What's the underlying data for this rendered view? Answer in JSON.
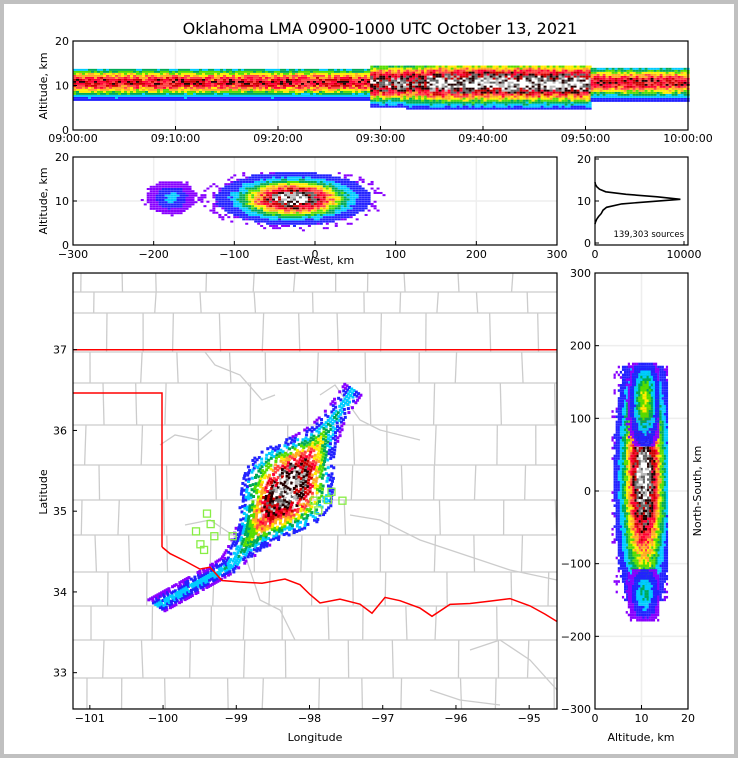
{
  "title": "Oklahoma LMA 0900-1000 UTC October 13, 2021",
  "colors": {
    "state_border": "#ff0000",
    "county_border": "#cccccc",
    "station_marker": "#88ee44",
    "grid": "#eeeeee",
    "density_scale": [
      "#8800ff",
      "#2222ff",
      "#00ccff",
      "#00aa55",
      "#55dd00",
      "#ffee00",
      "#ffaa22",
      "#ff4444",
      "#ff0033",
      "#cc0000",
      "#220000",
      "#666666",
      "#bbbbbb",
      "#ffffff"
    ]
  },
  "chart_data": [
    {
      "id": "time_height",
      "type": "heatmap",
      "title": "",
      "xlabel": "",
      "ylabel": "Altitude, km",
      "x_ticks": [
        "09:00:00",
        "09:10:00",
        "09:20:00",
        "09:30:00",
        "09:40:00",
        "09:50:00",
        "10:00:00"
      ],
      "xlim_minutes": [
        0,
        60
      ],
      "ylim": [
        0,
        20
      ],
      "y_ticks": [
        "0",
        "10",
        "20"
      ],
      "description_of_values": "source density vs time (minutes after 09:00) and altitude (km)",
      "bands": [
        {
          "t_start": 0,
          "t_end": 29,
          "alt_center": 10.5,
          "alt_spread": 1.8,
          "peak_level": 9
        },
        {
          "t_start": 29,
          "t_end": 32.5,
          "alt_center": 10.3,
          "alt_spread": 2.4,
          "peak_level": 12
        },
        {
          "t_start": 32.5,
          "t_end": 34.5,
          "alt_center": 10.3,
          "alt_spread": 2.6,
          "peak_level": 11
        },
        {
          "t_start": 34.5,
          "t_end": 50.5,
          "alt_center": 10.3,
          "alt_spread": 2.6,
          "peak_level": 13
        },
        {
          "t_start": 50.5,
          "t_end": 60,
          "alt_center": 10.5,
          "alt_spread": 1.9,
          "peak_level": 9
        }
      ]
    },
    {
      "id": "east_west_altitude",
      "type": "heatmap",
      "xlabel": "East-West, km",
      "ylabel": "Altitude, km",
      "xlim": [
        -300,
        300
      ],
      "ylim": [
        0,
        20
      ],
      "x_ticks": [
        "−300",
        "−200",
        "−100",
        "0",
        "100",
        "200",
        "300"
      ],
      "y_ticks": [
        "0",
        "10",
        "20"
      ],
      "clusters": [
        {
          "x_center": -28,
          "x_spread": 38,
          "alt_center": 10.3,
          "alt_spread": 2.4,
          "peak_level": 13
        },
        {
          "x_center": -180,
          "x_spread": 12,
          "alt_center": 10.5,
          "alt_spread": 1.5,
          "peak_level": 2
        }
      ]
    },
    {
      "id": "altitude_histogram",
      "type": "line",
      "xlabel": "",
      "ylabel": "",
      "xlim": [
        0,
        10000
      ],
      "ylim": [
        0,
        20
      ],
      "x_ticks": [
        "0",
        "10000"
      ],
      "y_ticks": [
        "0",
        "10",
        "20"
      ],
      "annotation": "139,303 sources",
      "x": [
        0,
        60,
        200,
        400,
        700,
        900,
        1300,
        3000,
        6500,
        9600,
        7000,
        3500,
        1200,
        500,
        200,
        60,
        0
      ],
      "y": [
        4.5,
        5.0,
        5.7,
        6.3,
        7.0,
        7.8,
        8.5,
        9.3,
        9.9,
        10.4,
        11.0,
        11.6,
        12.2,
        12.8,
        13.4,
        13.9,
        14.5
      ]
    },
    {
      "id": "plan_view_map",
      "type": "heatmap",
      "xlabel": "Longitude",
      "ylabel": "Latitude",
      "xlim": [
        -101.23,
        -94.62
      ],
      "ylim": [
        32.55,
        37.95
      ],
      "x_ticks": [
        "−101",
        "−100",
        "−99",
        "−98",
        "−97",
        "−96",
        "−95"
      ],
      "y_ticks": [
        "33",
        "34",
        "35",
        "36",
        "37"
      ],
      "storm_axis": [
        {
          "lon": -100.1,
          "lat": 33.85
        },
        {
          "lon": -99.1,
          "lat": 34.35
        },
        {
          "lon": -98.3,
          "lat": 35.3
        },
        {
          "lon": -97.4,
          "lat": 36.55
        }
      ],
      "stations": [
        {
          "lon": -99.4,
          "lat": 34.97
        },
        {
          "lon": -99.35,
          "lat": 34.84
        },
        {
          "lon": -99.55,
          "lat": 34.75
        },
        {
          "lon": -99.3,
          "lat": 34.69
        },
        {
          "lon": -99.49,
          "lat": 34.59
        },
        {
          "lon": -99.44,
          "lat": 34.52
        },
        {
          "lon": -99.05,
          "lat": 34.69
        },
        {
          "lon": -97.94,
          "lat": 35.13
        },
        {
          "lon": -97.7,
          "lat": 35.24
        },
        {
          "lon": -97.55,
          "lat": 35.13
        },
        {
          "lon": -97.88,
          "lat": 35.01
        },
        {
          "lon": -97.75,
          "lat": 35.14
        }
      ]
    },
    {
      "id": "altitude_north_south",
      "type": "heatmap",
      "xlabel": "Altitude, km",
      "ylabel": "North-South, km",
      "xlim": [
        0,
        20
      ],
      "ylim": [
        -300,
        300
      ],
      "x_ticks": [
        "0",
        "10",
        "20"
      ],
      "y_ticks": [
        "−300",
        "−200",
        "−100",
        "0",
        "100",
        "200",
        "300"
      ],
      "clusters": [
        {
          "alt_center": 10.3,
          "alt_spread": 2.6,
          "ns_center": 20,
          "ns_spread": 70,
          "peak_level": 13
        },
        {
          "alt_center": 10.5,
          "alt_spread": 1.5,
          "ns_center": 125,
          "ns_spread": 25,
          "peak_level": 5
        },
        {
          "alt_center": 10.5,
          "alt_spread": 1.5,
          "ns_center": -140,
          "ns_spread": 15,
          "peak_level": 3
        }
      ]
    }
  ]
}
